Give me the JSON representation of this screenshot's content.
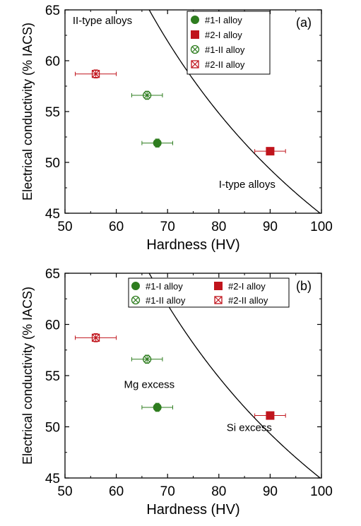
{
  "colors": {
    "alloy1": "#2e7d1f",
    "alloy2": "#c0141c",
    "curve": "#000000"
  },
  "chart_data": [
    {
      "type": "scatter",
      "panel_label": "(a)",
      "xlabel": "Hardness (HV)",
      "ylabel": "Electrical conductivity (% IACS)",
      "xlim": [
        50,
        100
      ],
      "ylim": [
        45,
        65
      ],
      "x_ticks": [
        "50",
        "60",
        "70",
        "80",
        "90",
        "100"
      ],
      "y_ticks": [
        "45",
        "50",
        "55",
        "60",
        "65"
      ],
      "grid": false,
      "legend_position": "top-center",
      "series": [
        {
          "name": "#1-I alloy",
          "marker": "filled-circle",
          "color": "#2e7d1f",
          "x": 68,
          "y": 51.9,
          "xerr": 3,
          "yerr": 0.4
        },
        {
          "name": "#2-I alloy",
          "marker": "filled-square",
          "color": "#c0141c",
          "x": 90,
          "y": 51.1,
          "xerr": 3,
          "yerr": 0.3
        },
        {
          "name": "#1-II alloy",
          "marker": "crossed-circle",
          "color": "#2e7d1f",
          "x": 66,
          "y": 56.6,
          "xerr": 3,
          "yerr": 0.4
        },
        {
          "name": "#2-II alloy",
          "marker": "crossed-square",
          "color": "#c0141c",
          "x": 56,
          "y": 58.7,
          "xerr": 4,
          "yerr": 0.4
        }
      ],
      "curve": {
        "formula": "y = 5.15 + 3975 / x",
        "x_range": [
          56,
          100
        ]
      },
      "annotations": [
        {
          "text": "II-type alloys",
          "x": 51.5,
          "y": 63.6
        },
        {
          "text": "I-type alloys",
          "x": 80,
          "y": 47.5
        }
      ]
    },
    {
      "type": "scatter",
      "panel_label": "(b)",
      "xlabel": "Hardness (HV)",
      "ylabel": "Electrical conductivity (% IACS)",
      "xlim": [
        50,
        100
      ],
      "ylim": [
        45,
        65
      ],
      "x_ticks": [
        "50",
        "60",
        "70",
        "80",
        "90",
        "100"
      ],
      "y_ticks": [
        "45",
        "50",
        "55",
        "60",
        "65"
      ],
      "grid": false,
      "legend_position": "top-center",
      "series": [
        {
          "name": "#1-I alloy",
          "marker": "filled-circle",
          "color": "#2e7d1f",
          "x": 68,
          "y": 51.9,
          "xerr": 3,
          "yerr": 0.4
        },
        {
          "name": "#1-II alloy",
          "marker": "crossed-circle",
          "color": "#2e7d1f",
          "x": 66,
          "y": 56.6,
          "xerr": 3,
          "yerr": 0.4
        },
        {
          "name": "#2-I alloy",
          "marker": "filled-square",
          "color": "#c0141c",
          "x": 90,
          "y": 51.1,
          "xerr": 3,
          "yerr": 0.3
        },
        {
          "name": "#2-II alloy",
          "marker": "crossed-square",
          "color": "#c0141c",
          "x": 56,
          "y": 58.7,
          "xerr": 4,
          "yerr": 0.4
        }
      ],
      "curve": {
        "formula": "y = 5.15 + 3975 / x",
        "x_range": [
          56,
          100
        ]
      },
      "annotations": [
        {
          "text": "Mg excess",
          "x": 61.5,
          "y": 53.8
        },
        {
          "text": "Si excess",
          "x": 81.5,
          "y": 49.6
        }
      ]
    }
  ]
}
